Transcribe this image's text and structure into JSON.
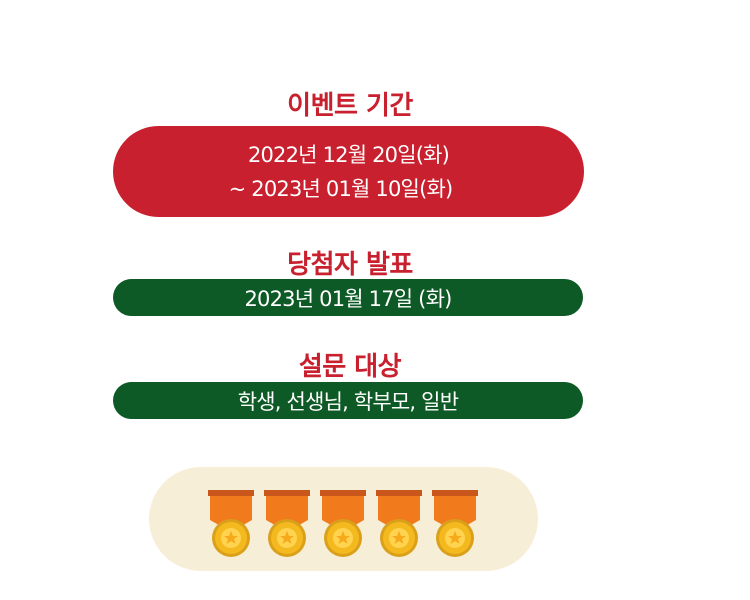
{
  "event_period": {
    "heading": "이벤트 기간",
    "start": "2022년 12월 20일(화)",
    "end": "~  2023년 01월 10일(화)"
  },
  "announcement": {
    "heading": "당첨자 발표",
    "date": "2023년 01월 17일 (화)"
  },
  "survey_target": {
    "heading": "설문 대상",
    "audience": "학생, 선생님, 학부모, 일반"
  },
  "medals": {
    "icon": "medal-icon",
    "count": 5
  },
  "colors": {
    "red": "#c8202e",
    "green": "#0e5a26",
    "tray": "#f7eed8",
    "medal_ribbon": "#f07a1c",
    "medal_gold": "#f4b91e"
  }
}
